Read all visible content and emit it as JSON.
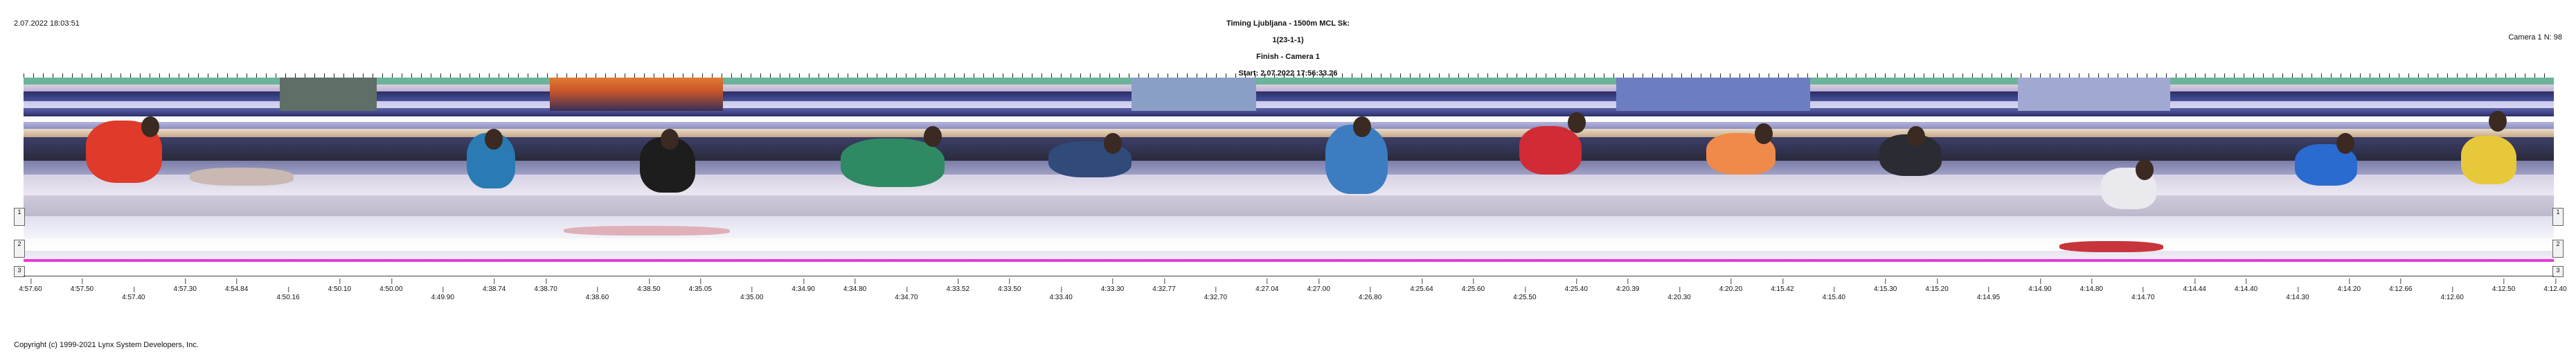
{
  "header": {
    "timestamp": "2.07.2022 18:03:51",
    "title_line1": "Timing Ljubljana - 1500m MCL  Sk: 1(23-1-1)",
    "title_line2": "Finish - Camera 1",
    "title_line3": "Start: 2.07.2022 17:56:33.26",
    "camera_label": "Camera 1 N: 98"
  },
  "lanes": {
    "left": [
      "1",
      "2",
      "3"
    ],
    "right": [
      "1",
      "2",
      "3"
    ]
  },
  "time_axis": [
    "4:57.60",
    "4:57.50",
    "4:57.40",
    "4:57.30",
    "4:54.84",
    "4:50.16",
    "4:50.10",
    "4:50.00",
    "4:49.90",
    "4:38.74",
    "4:38.70",
    "4:38.60",
    "4:38.50",
    "4:35.05",
    "4:35.00",
    "4:34.90",
    "4:34.80",
    "4:34.70",
    "4:33.52",
    "4:33.50",
    "4:33.40",
    "4:33.30",
    "4:32.77",
    "4:32.70",
    "4:27.04",
    "4:27.00",
    "4:26.80",
    "4:25.64",
    "4:25.60",
    "4:25.50",
    "4:25.40",
    "4:20.39",
    "4:20.30",
    "4:20.20",
    "4:15.42",
    "4:15.40",
    "4:15.30",
    "4:15.20",
    "4:14.95",
    "4:14.90",
    "4:14.80",
    "4:14.70",
    "4:14.44",
    "4:14.40",
    "4:14.30",
    "4:14.20",
    "4:12.66",
    "4:12.60",
    "4:12.50",
    "4:12.40"
  ],
  "footer": {
    "copyright": "Copyright (c) 1999-2021 Lynx System Developers, Inc."
  },
  "colors": {
    "finish_line": "#e83ad7",
    "top_band": "#6bb39a"
  }
}
